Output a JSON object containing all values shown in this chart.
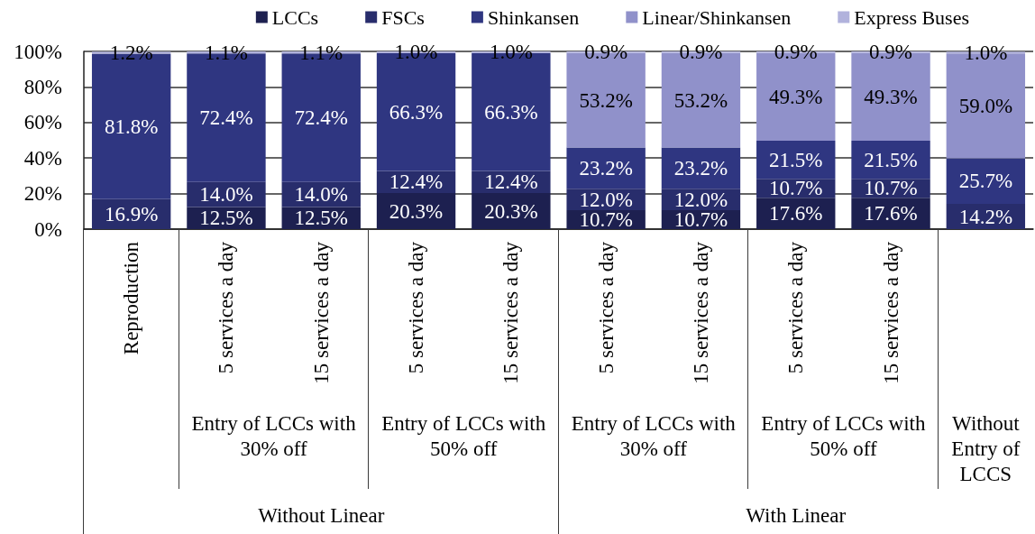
{
  "chart_data": {
    "type": "bar",
    "stacked": true,
    "categories": [
      "Reproduction",
      "5 services a day",
      "15 services a day",
      "5 services a day",
      "15 services a day",
      "5 services a day",
      "15 services a day",
      "5 services a day",
      "15 services a day",
      null
    ],
    "series": [
      {
        "name": "LCCs",
        "color": "#1d2050",
        "values": [
          null,
          12.5,
          12.5,
          20.3,
          20.3,
          10.7,
          10.7,
          17.6,
          17.6,
          null
        ],
        "value_labels": [
          null,
          "12.5%",
          "12.5%",
          "20.3%",
          "20.3%",
          "10.7%",
          "10.7%",
          "17.6%",
          "17.6%",
          null
        ]
      },
      {
        "name": "FSCs",
        "color": "#282d6c",
        "values": [
          16.9,
          14.0,
          14.0,
          12.4,
          12.4,
          12.0,
          12.0,
          10.7,
          10.7,
          14.2
        ],
        "value_labels": [
          "16.9%",
          "14.0%",
          "14.0%",
          "12.4%",
          "12.4%",
          "12.0%",
          "12.0%",
          "10.7%",
          "10.7%",
          "14.2%"
        ]
      },
      {
        "name": "Shinkansen",
        "color": "#2f3681",
        "values": [
          81.8,
          72.4,
          72.4,
          66.3,
          66.3,
          23.2,
          23.2,
          21.5,
          21.5,
          25.7
        ],
        "value_labels": [
          "81.8%",
          "72.4%",
          "72.4%",
          "66.3%",
          "66.3%",
          "23.2%",
          "23.2%",
          "21.5%",
          "21.5%",
          "25.7%"
        ]
      },
      {
        "name": "Linear/Shinkansen",
        "color": "#9091ca",
        "values": [
          null,
          null,
          null,
          null,
          null,
          53.2,
          53.2,
          49.3,
          49.3,
          59.0
        ],
        "value_labels": [
          null,
          null,
          null,
          null,
          null,
          "53.2%",
          "53.2%",
          "49.3%",
          "49.3%",
          "59.0%"
        ]
      },
      {
        "name": "Express Buses",
        "color": "#b1b2dc",
        "values": [
          1.2,
          1.1,
          1.1,
          1.0,
          1.0,
          0.9,
          0.9,
          0.9,
          0.9,
          1.0
        ],
        "value_labels": [
          "1.2%",
          "1.1%",
          "1.1%",
          "1.0%",
          "1.0%",
          "0.9%",
          "0.9%",
          "0.9%",
          "0.9%",
          "1.0%"
        ]
      }
    ],
    "ylim": [
      0,
      100
    ],
    "yticks": [
      {
        "value": 0,
        "label": "0%"
      },
      {
        "value": 20,
        "label": "20%"
      },
      {
        "value": 40,
        "label": "40%"
      },
      {
        "value": 60,
        "label": "60%"
      },
      {
        "value": 80,
        "label": "80%"
      },
      {
        "value": 100,
        "label": "100%"
      }
    ],
    "grid": "y",
    "legend": "top",
    "annotations": [
      "Entry of LCCs with 30% off",
      "Entry of LCCs with 50% off",
      "Entry of LCCs with 30% off",
      "Entry of LCCs with 50% off",
      "Without Entry of LCCS",
      "Without Linear",
      "With Linear"
    ]
  }
}
